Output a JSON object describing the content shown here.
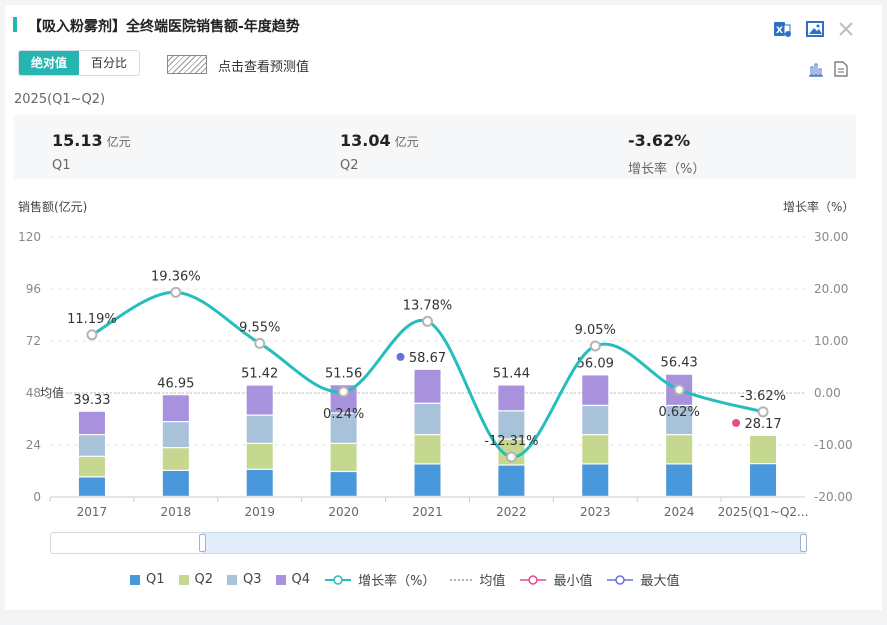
{
  "header": {
    "title": "【吸入粉雾剂】全终端医院销售额-年度趋势"
  },
  "icons": [
    "excel-icon",
    "image-icon",
    "close-icon",
    "bar-chart-icon",
    "table-icon"
  ],
  "toggle": {
    "absolute": "绝对值",
    "percent": "百分比"
  },
  "forecast": {
    "label": "点击查看预测值"
  },
  "period": "2025(Q1~Q2)",
  "kpis": [
    {
      "value": "15.13",
      "unit": "亿元",
      "label": "Q1"
    },
    {
      "value": "13.04",
      "unit": "亿元",
      "label": "Q2"
    },
    {
      "value": "-3.62%",
      "unit": "",
      "label": "增长率（%）"
    }
  ],
  "axis": {
    "left_title": "销售额(亿元)",
    "right_title": "增长率（%）",
    "avg_label": "均值"
  },
  "colors": {
    "q1": "#4a98dc",
    "q2": "#c6d88f",
    "q3": "#a8c2da",
    "q4": "#a891dd",
    "line": "#26bdbd",
    "min": "#e84a8a",
    "max": "#6672d8"
  },
  "chart_data": {
    "type": "bar",
    "title": "【吸入粉雾剂】全终端医院销售额-年度趋势",
    "categories": [
      "2017",
      "2018",
      "2019",
      "2020",
      "2021",
      "2022",
      "2023",
      "2024",
      "2025(Q1~Q2..."
    ],
    "series": [
      {
        "name": "Q1",
        "values": [
          9.0,
          12.0,
          12.5,
          11.5,
          15.0,
          14.5,
          15.0,
          15.0,
          15.13
        ]
      },
      {
        "name": "Q2",
        "values": [
          9.5,
          10.5,
          12.0,
          13.0,
          13.5,
          12.0,
          13.5,
          13.5,
          13.04
        ]
      },
      {
        "name": "Q3",
        "values": [
          10.0,
          12.0,
          13.0,
          14.0,
          14.5,
          13.0,
          13.5,
          13.5,
          0
        ]
      },
      {
        "name": "Q4",
        "values": [
          10.83,
          12.45,
          13.92,
          13.06,
          15.67,
          11.94,
          14.09,
          14.43,
          0
        ]
      }
    ],
    "totals": [
      39.33,
      46.95,
      51.42,
      51.56,
      58.67,
      51.44,
      56.09,
      56.43,
      28.17
    ],
    "total_labels": [
      "39.33",
      "46.95",
      "51.42",
      "51.56",
      "58.67",
      "51.44",
      "56.09",
      "56.43",
      "28.17"
    ],
    "growth": {
      "name": "增长率（%）",
      "values": [
        11.19,
        19.36,
        9.55,
        0.24,
        13.78,
        -12.31,
        9.05,
        0.62,
        -3.62
      ],
      "labels": [
        "11.19%",
        "19.36%",
        "9.55%",
        "0.24%",
        "13.78%",
        "-12.31%",
        "9.05%",
        "0.62%",
        "-3.62%"
      ]
    },
    "average": 48,
    "max_index": 4,
    "min_index": 8,
    "ylim": [
      0,
      120
    ],
    "y_ticks": [
      "0",
      "24",
      "48",
      "72",
      "96",
      "120"
    ],
    "y2lim": [
      -20,
      30
    ],
    "y2_ticks": [
      "-20.00",
      "-10.00",
      "0.00",
      "10.00",
      "20.00",
      "30.00"
    ],
    "ylabel": "销售额(亿元)",
    "y2label": "增长率（%）",
    "legend": [
      "Q1",
      "Q2",
      "Q3",
      "Q4",
      "增长率（%）",
      "均值",
      "最小值",
      "最大值"
    ]
  }
}
